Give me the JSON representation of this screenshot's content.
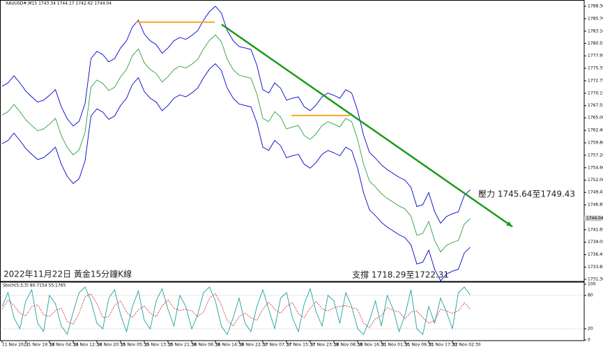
{
  "chart_data": [
    {
      "type": "line",
      "title": "XAUUSD#,M15 1743.34 1744.17 1742.62 1744.04",
      "categories": [
        "11 Nov 2022",
        null,
        null,
        null,
        "11 Nov 19:30",
        null,
        null,
        null,
        "14 Nov 04:30",
        null,
        null,
        null,
        "14 Nov 12:30",
        null,
        null,
        null,
        "14 Nov 20:30",
        null,
        null,
        null,
        "15 Nov 05:30",
        null,
        null,
        null,
        "15 Nov 13:30",
        null,
        null,
        null,
        "15 Nov 21:30",
        null,
        null,
        null,
        "16 Nov 06:30",
        null,
        null,
        null,
        "16 Nov 14:30",
        null,
        null,
        null,
        "16 Nov 22:30",
        null,
        null,
        null,
        "17 Nov 07:30",
        null,
        null,
        null,
        "17 Nov 15:30",
        null,
        null,
        null,
        "17 Nov 23:30",
        null,
        null,
        null,
        "18 Nov 08:30",
        null,
        null,
        null,
        "18 Nov 16:30",
        null,
        null,
        null,
        "21 Nov 01:30",
        null,
        null,
        null,
        "21 Nov 09:30",
        null,
        null,
        null,
        "21 Nov 17:30",
        null,
        null,
        null,
        "22 Nov 02:30",
        null,
        null,
        null
      ],
      "series": [
        {
          "color": "#0000cc",
          "values": [
            1771.6,
            1772.3,
            1773.8,
            1772.3,
            1770.6,
            1769.4,
            1768.3,
            1768.7,
            1769.7,
            1770.9,
            1767.3,
            1764.8,
            1763.3,
            1764.3,
            1768.0,
            1777.4,
            1778.9,
            1778.2,
            1776.7,
            1777.4,
            1779.6,
            1781.1,
            1784.0,
            1785.4,
            1782.5,
            1781.1,
            1780.3,
            1778.5,
            1779.6,
            1781.1,
            1781.8,
            1781.4,
            1782.2,
            1783.2,
            1785.4,
            1787.2,
            1788.3,
            1786.9,
            1783.2,
            1781.1,
            1779.9,
            1779.6,
            1779.3,
            1776.0,
            1770.9,
            1770.2,
            1772.3,
            1771.2,
            1768.7,
            1769.1,
            1769.4,
            1767.3,
            1766.5,
            1767.7,
            1769.4,
            1770.2,
            1769.7,
            1769.1,
            1770.9,
            1770.2,
            1766.5,
            1761.4,
            1757.8,
            1756.6,
            1755.2,
            1754.2,
            1753.4,
            1752.6,
            1752.0,
            1750.5,
            1746.5,
            1746.9,
            1749.4,
            1745.4,
            1743.0,
            1744.4,
            1745.0,
            1745.4,
            1748.8,
            1750.0
          ]
        },
        {
          "color": "#2e9e3e",
          "values": [
            1765.6,
            1766.3,
            1767.8,
            1766.3,
            1764.6,
            1763.4,
            1762.3,
            1762.7,
            1763.7,
            1764.9,
            1761.3,
            1758.8,
            1757.3,
            1758.3,
            1762.0,
            1771.4,
            1772.9,
            1772.2,
            1770.7,
            1771.4,
            1773.6,
            1775.1,
            1778.0,
            1779.4,
            1776.5,
            1775.1,
            1774.3,
            1772.5,
            1773.6,
            1775.1,
            1775.8,
            1775.4,
            1776.2,
            1777.2,
            1779.4,
            1781.2,
            1782.3,
            1780.9,
            1777.2,
            1775.1,
            1773.9,
            1773.6,
            1773.3,
            1770.0,
            1764.9,
            1764.2,
            1766.3,
            1765.2,
            1762.7,
            1763.1,
            1763.4,
            1761.3,
            1760.5,
            1761.7,
            1763.4,
            1764.2,
            1763.7,
            1763.1,
            1764.9,
            1764.2,
            1760.5,
            1755.4,
            1751.8,
            1750.6,
            1749.2,
            1748.2,
            1747.4,
            1746.6,
            1746.0,
            1744.5,
            1740.5,
            1740.9,
            1743.4,
            1739.4,
            1737.0,
            1738.4,
            1739.0,
            1739.4,
            1742.8,
            1744.0
          ]
        },
        {
          "color": "#0000cc",
          "values": [
            1759.6,
            1760.3,
            1761.8,
            1760.3,
            1758.6,
            1757.4,
            1756.3,
            1756.7,
            1757.7,
            1758.9,
            1755.3,
            1752.8,
            1751.3,
            1752.3,
            1756.0,
            1765.4,
            1766.9,
            1766.2,
            1764.7,
            1765.4,
            1767.6,
            1769.1,
            1772.0,
            1773.4,
            1770.5,
            1769.1,
            1768.3,
            1766.5,
            1767.6,
            1769.1,
            1769.8,
            1769.4,
            1770.2,
            1771.2,
            1773.4,
            1775.2,
            1776.3,
            1774.9,
            1771.2,
            1769.1,
            1767.9,
            1767.6,
            1767.3,
            1764.0,
            1758.9,
            1758.2,
            1760.3,
            1759.2,
            1756.7,
            1757.1,
            1757.4,
            1755.3,
            1754.5,
            1755.7,
            1757.4,
            1758.2,
            1757.7,
            1757.1,
            1758.9,
            1758.2,
            1754.5,
            1749.4,
            1745.8,
            1744.6,
            1743.2,
            1742.2,
            1741.4,
            1740.6,
            1740.0,
            1738.5,
            1734.5,
            1734.9,
            1737.4,
            1733.4,
            1731.0,
            1732.4,
            1733.0,
            1733.4,
            1736.8,
            1738.0
          ]
        }
      ],
      "ylim": [
        1731.3,
        1788.3
      ],
      "yticks": [
        {
          "value": 1788.3,
          "label": "1788.30"
        },
        {
          "value": 1785.7,
          "label": "1785.70"
        },
        {
          "value": 1783.1,
          "label": "1783.10"
        },
        1780.55,
        1777.95,
        1775.35,
        1772.75,
        1770.15,
        1767.55,
        {
          "value": 1765,
          "label": "1765.00"
        },
        {
          "value": 1762.4,
          "label": "1762.40"
        },
        {
          "value": 1759.8,
          "label": "1759.80"
        },
        {
          "value": 1757.2,
          "label": "1757.20"
        },
        {
          "value": 1754.6,
          "label": "1754.60"
        },
        {
          "value": 1752,
          "label": "1752.00"
        },
        1749.45,
        1746.85,
        1741.65,
        1739.05,
        1736.45,
        1733.85,
        {
          "value": 1731.3,
          "label": "1731.30"
        }
      ],
      "last_price": 1744.04,
      "hlines": [
        {
          "value": 1785.0,
          "color": "#f5a623"
        },
        {
          "value": 1765.5,
          "color": "#f5a623"
        }
      ],
      "trendline": {
        "values": [
          1784.5,
          1742.3
        ],
        "color": "#1a9a1a"
      },
      "annotations": [
        "壓力 1745.64至1749.43",
        "支撐 1718.29至1722.31",
        "2022年11月22日 黃金15分鐘K線"
      ]
    },
    {
      "type": "line",
      "title": "Stoch(5,3,3) 80.7154 55.1765",
      "series": [
        {
          "color": "#20a0a0",
          "values": [
            60,
            85,
            40,
            20,
            70,
            90,
            30,
            15,
            80,
            65,
            25,
            10,
            50,
            85,
            95,
            70,
            30,
            20,
            75,
            90,
            45,
            15,
            60,
            88,
            35,
            20,
            70,
            92,
            55,
            25,
            80,
            60,
            20,
            45,
            85,
            95,
            70,
            25,
            10,
            40,
            75,
            30,
            15,
            60,
            90,
            55,
            20,
            75,
            85,
            40,
            15,
            65,
            92,
            50,
            25,
            80,
            70,
            30,
            85,
            60,
            20,
            10,
            35,
            70,
            25,
            80,
            55,
            15,
            45,
            90,
            20,
            10,
            60,
            30,
            75,
            50,
            20,
            85,
            95,
            80.7154
          ]
        },
        {
          "color": "#d03030",
          "dashed": true,
          "values": [
            55,
            72,
            62,
            48,
            43,
            60,
            63,
            45,
            42,
            53,
            57,
            33,
            28,
            48,
            77,
            83,
            65,
            40,
            42,
            62,
            70,
            50,
            40,
            54,
            61,
            48,
            42,
            61,
            72,
            57,
            53,
            55,
            52,
            42,
            50,
            75,
            83,
            63,
            35,
            25,
            42,
            48,
            40,
            35,
            55,
            68,
            55,
            48,
            60,
            67,
            47,
            40,
            57,
            69,
            56,
            52,
            58,
            60,
            62,
            58,
            55,
            30,
            22,
            38,
            43,
            58,
            53,
            50,
            38,
            50,
            52,
            40,
            30,
            35,
            55,
            52,
            48,
            52,
            67,
            55.1765
          ]
        }
      ],
      "ylim": [
        0,
        100
      ],
      "yticks": [
        0,
        20,
        80,
        100
      ],
      "levels": [
        20,
        80
      ]
    }
  ]
}
